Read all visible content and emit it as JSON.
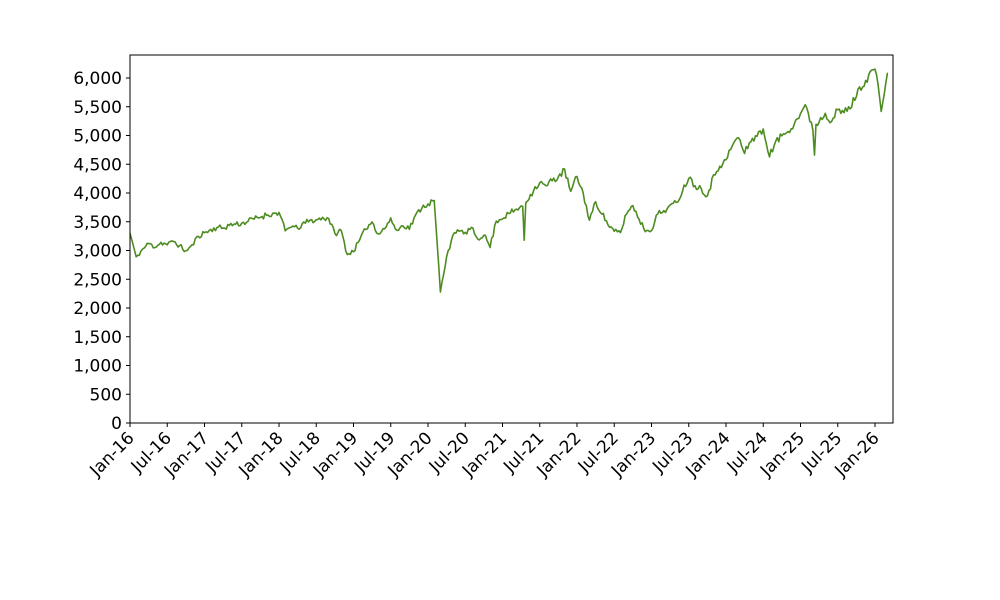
{
  "figure": {
    "background": "#ffffff",
    "text_color": "#000000"
  },
  "chart_data": {
    "type": "line",
    "title": "",
    "xlabel": "",
    "ylabel": "",
    "legend": false,
    "grid": false,
    "line_color": "#4d8c20",
    "line_width": 1.6,
    "x_interval": "monthly",
    "x_start": "Jan-16",
    "x_end": "Mar-26",
    "x_tick_labels": [
      "Jan-16",
      "Jul-16",
      "Jan-17",
      "Jul-17",
      "Jan-18",
      "Jul-18",
      "Jan-19",
      "Jul-19",
      "Jan-20",
      "Jul-20",
      "Jan-21",
      "Jul-21",
      "Jan-22",
      "Jul-22",
      "Jan-23",
      "Jul-23",
      "Jan-24",
      "Jul-24",
      "Jan-25",
      "Jul-25",
      "Jan-26"
    ],
    "x_tick_months": [
      0,
      6,
      12,
      18,
      24,
      30,
      36,
      42,
      48,
      54,
      60,
      66,
      72,
      78,
      84,
      90,
      96,
      102,
      108,
      114,
      120
    ],
    "y_ticks": [
      0,
      500,
      1000,
      1500,
      2000,
      2500,
      3000,
      3500,
      4000,
      4500,
      5000,
      5500,
      6000
    ],
    "y_tick_labels": [
      "0",
      "500",
      "1,000",
      "1,500",
      "2,000",
      "2,500",
      "3,000",
      "3,500",
      "4,000",
      "4,500",
      "5,000",
      "5,500",
      "6,000"
    ],
    "ylim": [
      0,
      6400
    ],
    "xlim_months": [
      0,
      122.9
    ],
    "values_monthly": [
      3300,
      2880,
      3020,
      3120,
      3060,
      3140,
      3100,
      3160,
      3080,
      2990,
      3090,
      3250,
      3310,
      3360,
      3400,
      3390,
      3440,
      3460,
      3470,
      3510,
      3550,
      3580,
      3620,
      3640,
      3660,
      3340,
      3420,
      3380,
      3480,
      3520,
      3530,
      3570,
      3560,
      3290,
      3350,
      2930,
      2990,
      3180,
      3380,
      3500,
      3290,
      3380,
      3550,
      3345,
      3440,
      3380,
      3610,
      3745,
      3815,
      3860,
      2280,
      2900,
      3250,
      3350,
      3300,
      3390,
      3200,
      3280,
      3060,
      3520,
      3560,
      3640,
      3700,
      3760,
      3870,
      4050,
      4180,
      4120,
      4220,
      4280,
      4400,
      4020,
      4290,
      3990,
      3530,
      3840,
      3650,
      3450,
      3330,
      3310,
      3650,
      3780,
      3550,
      3340,
      3360,
      3640,
      3690,
      3780,
      3830,
      4040,
      4270,
      4130,
      4080,
      3955,
      4300,
      4480,
      4565,
      4825,
      4965,
      4690,
      4910,
      5000,
      5090,
      4650,
      4880,
      5000,
      5090,
      5210,
      5380,
      5500,
      5100,
      5250,
      5400,
      5250,
      5435,
      5400,
      5480,
      5700,
      5870,
      6050,
      6170,
      5440,
      6080
    ],
    "spikes": [
      {
        "m": 63.6,
        "v": 3180
      },
      {
        "m": 110.35,
        "v": 4660
      }
    ],
    "texture": {
      "points_per_month": 4,
      "noise_pct": 1.4,
      "seed": 11
    }
  }
}
